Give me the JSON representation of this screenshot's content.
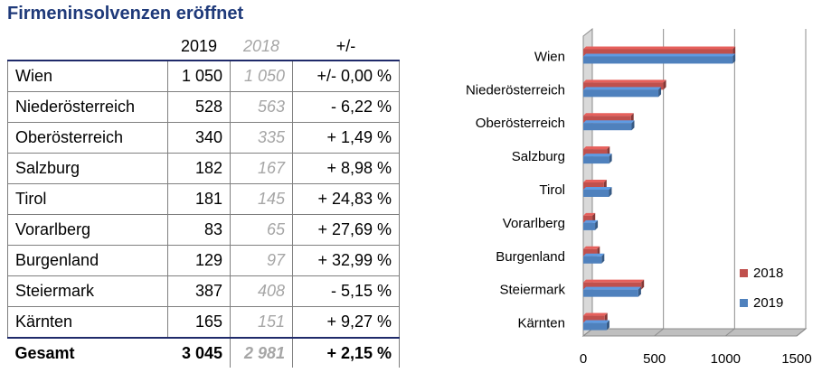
{
  "title": "Firmeninsolvenzen eröffnet",
  "table": {
    "headers": [
      "",
      "2019",
      "2018",
      "+/-"
    ],
    "rows": [
      {
        "name": "Wien",
        "v2019": "1 050",
        "v2018": "1 050",
        "diff": "+/- 0,00 %"
      },
      {
        "name": "Niederösterreich",
        "v2019": "528",
        "v2018": "563",
        "diff": "- 6,22 %"
      },
      {
        "name": "Oberösterreich",
        "v2019": "340",
        "v2018": "335",
        "diff": "+ 1,49 %"
      },
      {
        "name": "Salzburg",
        "v2019": "182",
        "v2018": "167",
        "diff": "+ 8,98 %"
      },
      {
        "name": "Tirol",
        "v2019": "181",
        "v2018": "145",
        "diff": "+ 24,83 %"
      },
      {
        "name": "Vorarlberg",
        "v2019": "83",
        "v2018": "65",
        "diff": "+ 27,69 %"
      },
      {
        "name": "Burgenland",
        "v2019": "129",
        "v2018": "97",
        "diff": "+ 32,99 %"
      },
      {
        "name": "Steiermark",
        "v2019": "387",
        "v2018": "408",
        "diff": "- 5,15 %"
      },
      {
        "name": "Kärnten",
        "v2019": "165",
        "v2018": "151",
        "diff": "+ 9,27 %"
      }
    ],
    "total": {
      "name": "Gesamt",
      "v2019": "3 045",
      "v2018": "2 981",
      "diff": "+ 2,15 %"
    }
  },
  "chart_data": {
    "type": "bar",
    "orientation": "horizontal",
    "categories": [
      "Wien",
      "Niederösterreich",
      "Oberösterreich",
      "Salzburg",
      "Tirol",
      "Vorarlberg",
      "Burgenland",
      "Steiermark",
      "Kärnten"
    ],
    "series": [
      {
        "name": "2018",
        "color": "#c0504d",
        "values": [
          1050,
          563,
          335,
          167,
          145,
          65,
          97,
          408,
          151
        ]
      },
      {
        "name": "2019",
        "color": "#4f81bd",
        "values": [
          1050,
          528,
          340,
          182,
          181,
          83,
          129,
          387,
          165
        ]
      }
    ],
    "xlim": [
      0,
      1500
    ],
    "xticks": [
      0,
      500,
      1000,
      1500
    ],
    "legend": "right",
    "style": "3d"
  }
}
